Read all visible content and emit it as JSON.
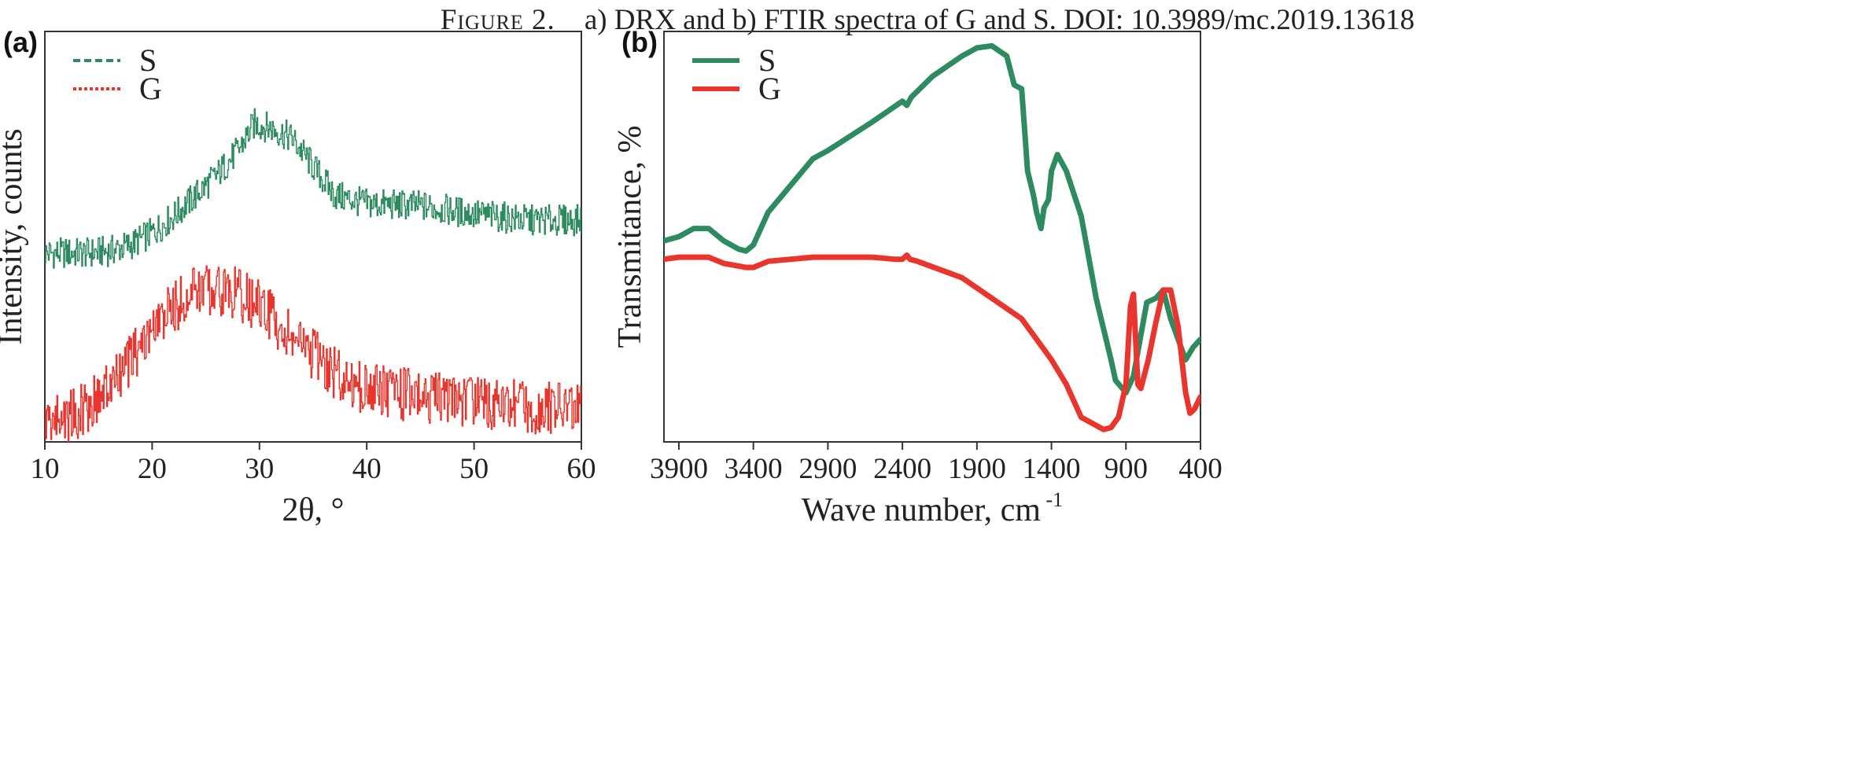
{
  "caption": {
    "figure_label": "Figure 2.",
    "text": "a) DRX and b) FTIR spectra of G and S. DOI: 10.3989/mc.2019.13618"
  },
  "colors": {
    "S": "#2e8b5f",
    "G": "#e8352e"
  },
  "chart_data": [
    {
      "type": "line",
      "panel_label": "(a)",
      "xlabel": "2θ, °",
      "ylabel": "Intensity, counts",
      "xlim": [
        10,
        60
      ],
      "xticks": [
        10,
        20,
        30,
        40,
        50,
        60
      ],
      "y_tick_labels": false,
      "legend_position": "top-left",
      "series": [
        {
          "name": "S",
          "line_style": "dashed",
          "color": "#2e8b5f",
          "x": [
            10,
            14,
            16,
            18,
            20,
            22,
            24,
            26,
            28,
            29.5,
            31,
            33,
            35,
            37,
            40,
            45,
            50,
            55,
            60
          ],
          "y": [
            0.46,
            0.46,
            0.465,
            0.48,
            0.51,
            0.55,
            0.6,
            0.65,
            0.71,
            0.775,
            0.765,
            0.74,
            0.67,
            0.6,
            0.58,
            0.575,
            0.555,
            0.54,
            0.54
          ]
        },
        {
          "name": "G",
          "line_style": "dotted",
          "color": "#e8352e",
          "x": [
            10,
            13,
            16,
            18,
            20,
            22,
            24,
            26,
            28,
            30,
            32,
            34,
            36,
            38,
            40,
            45,
            50,
            55,
            60
          ],
          "y": [
            0.05,
            0.07,
            0.13,
            0.2,
            0.27,
            0.33,
            0.37,
            0.375,
            0.36,
            0.33,
            0.28,
            0.23,
            0.19,
            0.15,
            0.13,
            0.11,
            0.1,
            0.085,
            0.08
          ]
        }
      ]
    },
    {
      "type": "line",
      "panel_label": "(b)",
      "xlabel": "Wave number, cm",
      "xlabel_superscript": "-1",
      "ylabel": "Transmitance, %",
      "xlim": [
        4000,
        400
      ],
      "xticks": [
        3900,
        3400,
        2900,
        2400,
        1900,
        1400,
        900,
        400
      ],
      "y_tick_labels": false,
      "legend_position": "top-left",
      "series": [
        {
          "name": "S",
          "line_style": "solid",
          "color": "#2e8b5f",
          "x": [
            4000,
            3900,
            3800,
            3700,
            3600,
            3500,
            3450,
            3400,
            3350,
            3300,
            3000,
            2900,
            2600,
            2400,
            2370,
            2340,
            2200,
            2000,
            1900,
            1800,
            1700,
            1650,
            1600,
            1560,
            1520,
            1500,
            1470,
            1450,
            1420,
            1400,
            1360,
            1300,
            1200,
            1100,
            1000,
            970,
            900,
            850,
            800,
            760,
            700,
            650,
            600,
            500,
            450,
            400
          ],
          "y": [
            0.49,
            0.5,
            0.52,
            0.52,
            0.49,
            0.47,
            0.465,
            0.48,
            0.52,
            0.56,
            0.69,
            0.71,
            0.78,
            0.83,
            0.82,
            0.84,
            0.89,
            0.94,
            0.96,
            0.965,
            0.94,
            0.87,
            0.86,
            0.66,
            0.6,
            0.56,
            0.52,
            0.57,
            0.59,
            0.66,
            0.7,
            0.66,
            0.55,
            0.35,
            0.2,
            0.15,
            0.12,
            0.16,
            0.26,
            0.34,
            0.35,
            0.37,
            0.3,
            0.2,
            0.23,
            0.25
          ]
        },
        {
          "name": "G",
          "line_style": "solid",
          "color": "#e8352e",
          "x": [
            4000,
            3900,
            3800,
            3700,
            3600,
            3450,
            3400,
            3300,
            3000,
            2800,
            2600,
            2450,
            2400,
            2370,
            2350,
            2300,
            2000,
            1800,
            1600,
            1400,
            1300,
            1200,
            1100,
            1050,
            1000,
            950,
            900,
            870,
            850,
            820,
            800,
            750,
            700,
            650,
            600,
            550,
            500,
            470,
            440,
            400
          ],
          "y": [
            0.445,
            0.45,
            0.45,
            0.45,
            0.435,
            0.425,
            0.425,
            0.44,
            0.45,
            0.45,
            0.45,
            0.445,
            0.445,
            0.455,
            0.445,
            0.44,
            0.4,
            0.35,
            0.3,
            0.2,
            0.14,
            0.06,
            0.04,
            0.03,
            0.035,
            0.06,
            0.14,
            0.33,
            0.36,
            0.14,
            0.13,
            0.2,
            0.29,
            0.37,
            0.37,
            0.28,
            0.12,
            0.07,
            0.08,
            0.11
          ]
        }
      ]
    }
  ]
}
